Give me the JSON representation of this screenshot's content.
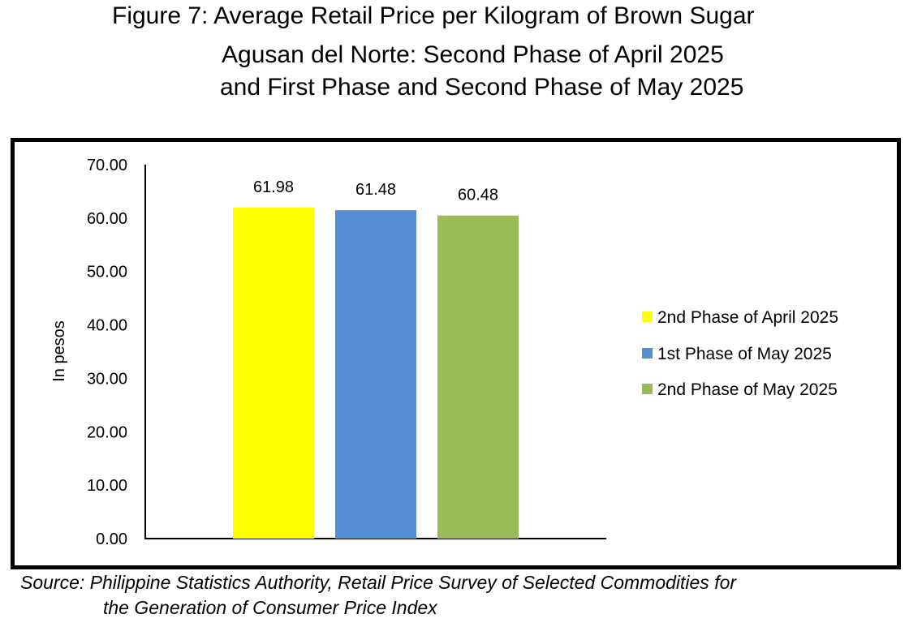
{
  "title_lines": [
    "Figure 7: Average Retail Price per Kilogram of Brown Sugar",
    "Agusan del Norte: Second Phase of April 2025",
    "and First Phase and Second Phase of May 2025"
  ],
  "source_lines": [
    "Source: Philippine Statistics Authority, Retail Price Survey of Selected Commodities for",
    "the Generation of Consumer Price Index"
  ],
  "chart_data": {
    "type": "bar",
    "ylabel": "In pesos",
    "ylim": [
      0,
      70
    ],
    "yticks": [
      "0.00",
      "10.00",
      "20.00",
      "30.00",
      "40.00",
      "50.00",
      "60.00",
      "70.00"
    ],
    "grid": false,
    "legend_position": "right",
    "series": [
      {
        "name": "2nd Phase of April 2025",
        "value": 61.98,
        "label": "61.98",
        "color": "#FFFF00"
      },
      {
        "name": "1st Phase of May 2025",
        "value": 61.48,
        "label": "61.48",
        "color": "#558ED5"
      },
      {
        "name": "2nd Phase of May 2025",
        "value": 60.48,
        "label": "60.48",
        "color": "#9BBB59"
      }
    ]
  }
}
